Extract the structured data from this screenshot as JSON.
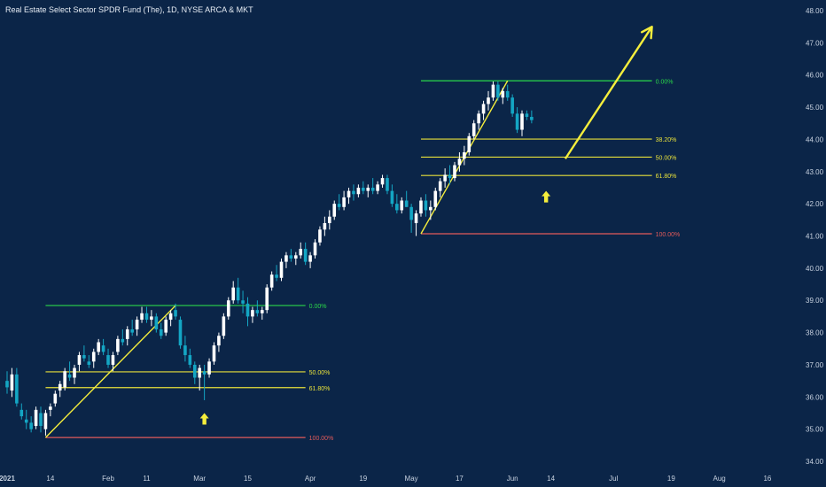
{
  "chart_data": {
    "type": "candlestick",
    "title": "Real Estate Select Sector SPDR Fund (The), 1D, NYSE ARCA & MKT",
    "ylim": [
      33.6,
      48.3
    ],
    "y_ticks": [
      "34.00",
      "35.00",
      "36.00",
      "37.00",
      "38.00",
      "39.00",
      "40.00",
      "41.00",
      "42.00",
      "43.00",
      "44.00",
      "45.00",
      "46.00",
      "47.00",
      "48.00"
    ],
    "x_ticks": [
      {
        "label": "2021",
        "bar": 0
      },
      {
        "label": "14",
        "bar": 9
      },
      {
        "label": "Feb",
        "bar": 21
      },
      {
        "label": "11",
        "bar": 29
      },
      {
        "label": "Mar",
        "bar": 40
      },
      {
        "label": "15",
        "bar": 50
      },
      {
        "label": "Apr",
        "bar": 63
      },
      {
        "label": "19",
        "bar": 74
      },
      {
        "label": "May",
        "bar": 84
      },
      {
        "label": "17",
        "bar": 94
      },
      {
        "label": "Jun",
        "bar": 105
      },
      {
        "label": "14",
        "bar": 113
      },
      {
        "label": "Jul",
        "bar": 126
      },
      {
        "label": "19",
        "bar": 138
      },
      {
        "label": "Aug",
        "bar": 148
      },
      {
        "label": "16",
        "bar": 158
      }
    ],
    "ohlc": [
      [
        36.5,
        36.8,
        36.1,
        36.3
      ],
      [
        36.2,
        36.9,
        36.0,
        36.7
      ],
      [
        36.7,
        36.9,
        35.7,
        35.8
      ],
      [
        35.6,
        35.8,
        35.3,
        35.4
      ],
      [
        35.3,
        35.6,
        35.0,
        35.2
      ],
      [
        35.2,
        35.4,
        34.9,
        35.0
      ],
      [
        35.1,
        35.7,
        35.0,
        35.6
      ],
      [
        35.5,
        35.7,
        34.9,
        35.1
      ],
      [
        35.0,
        35.6,
        34.8,
        35.5
      ],
      [
        35.6,
        35.8,
        35.4,
        35.7
      ],
      [
        35.8,
        36.2,
        35.7,
        36.1
      ],
      [
        36.2,
        36.5,
        36.0,
        36.4
      ],
      [
        36.3,
        36.9,
        36.2,
        36.8
      ],
      [
        36.7,
        37.1,
        36.5,
        36.6
      ],
      [
        36.6,
        37.0,
        36.4,
        36.9
      ],
      [
        37.0,
        37.4,
        36.8,
        37.3
      ],
      [
        37.3,
        37.6,
        37.1,
        37.2
      ],
      [
        37.1,
        37.3,
        36.9,
        37.0
      ],
      [
        37.1,
        37.5,
        36.9,
        37.4
      ],
      [
        37.4,
        37.8,
        37.3,
        37.7
      ],
      [
        37.6,
        37.8,
        37.3,
        37.4
      ],
      [
        37.3,
        37.5,
        36.9,
        37.0
      ],
      [
        37.0,
        37.4,
        36.8,
        37.3
      ],
      [
        37.4,
        37.9,
        37.3,
        37.8
      ],
      [
        37.8,
        38.1,
        37.6,
        37.7
      ],
      [
        37.8,
        38.2,
        37.6,
        38.1
      ],
      [
        38.1,
        38.4,
        37.9,
        38.0
      ],
      [
        38.1,
        38.5,
        37.9,
        38.4
      ],
      [
        38.4,
        38.8,
        38.3,
        38.6
      ],
      [
        38.6,
        38.8,
        38.3,
        38.4
      ],
      [
        38.4,
        38.7,
        38.2,
        38.5
      ],
      [
        38.5,
        38.6,
        38.0,
        38.1
      ],
      [
        38.1,
        38.3,
        37.8,
        37.9
      ],
      [
        38.0,
        38.5,
        37.9,
        38.4
      ],
      [
        38.4,
        38.7,
        38.2,
        38.6
      ],
      [
        38.7,
        38.9,
        38.4,
        38.5
      ],
      [
        38.4,
        38.5,
        37.5,
        37.6
      ],
      [
        37.6,
        37.9,
        37.1,
        37.3
      ],
      [
        37.3,
        37.5,
        36.9,
        37.0
      ],
      [
        37.0,
        37.1,
        36.4,
        36.6
      ],
      [
        36.6,
        37.0,
        36.2,
        36.9
      ],
      [
        36.8,
        37.0,
        35.9,
        36.7
      ],
      [
        36.7,
        37.2,
        36.6,
        37.1
      ],
      [
        37.1,
        37.7,
        37.0,
        37.6
      ],
      [
        37.6,
        38.0,
        37.4,
        37.9
      ],
      [
        37.9,
        38.6,
        37.8,
        38.5
      ],
      [
        38.5,
        39.1,
        38.4,
        39.0
      ],
      [
        39.0,
        39.6,
        38.9,
        39.4
      ],
      [
        39.4,
        39.7,
        38.9,
        39.0
      ],
      [
        39.0,
        39.3,
        38.6,
        38.9
      ],
      [
        38.9,
        39.1,
        38.2,
        38.5
      ],
      [
        38.5,
        38.8,
        38.3,
        38.7
      ],
      [
        38.7,
        39.0,
        38.5,
        38.6
      ],
      [
        38.6,
        38.8,
        38.4,
        38.7
      ],
      [
        38.7,
        39.5,
        38.6,
        39.4
      ],
      [
        39.4,
        39.9,
        39.3,
        39.8
      ],
      [
        39.8,
        40.1,
        39.6,
        39.7
      ],
      [
        39.7,
        40.3,
        39.6,
        40.2
      ],
      [
        40.2,
        40.5,
        40.0,
        40.4
      ],
      [
        40.4,
        40.6,
        40.2,
        40.3
      ],
      [
        40.3,
        40.5,
        40.1,
        40.4
      ],
      [
        40.4,
        40.8,
        40.3,
        40.6
      ],
      [
        40.6,
        40.8,
        40.1,
        40.2
      ],
      [
        40.2,
        40.5,
        40.0,
        40.4
      ],
      [
        40.4,
        40.9,
        40.3,
        40.8
      ],
      [
        40.8,
        41.3,
        40.7,
        41.2
      ],
      [
        41.2,
        41.6,
        41.0,
        41.4
      ],
      [
        41.4,
        41.8,
        41.2,
        41.6
      ],
      [
        41.6,
        42.1,
        41.5,
        42.0
      ],
      [
        42.0,
        42.3,
        41.8,
        41.9
      ],
      [
        41.9,
        42.4,
        41.8,
        42.2
      ],
      [
        42.2,
        42.5,
        42.0,
        42.4
      ],
      [
        42.4,
        42.6,
        42.1,
        42.3
      ],
      [
        42.3,
        42.6,
        42.2,
        42.5
      ],
      [
        42.5,
        42.7,
        42.3,
        42.4
      ],
      [
        42.4,
        42.6,
        42.2,
        42.5
      ],
      [
        42.5,
        42.8,
        42.3,
        42.4
      ],
      [
        42.4,
        42.7,
        42.3,
        42.6
      ],
      [
        42.6,
        42.9,
        42.5,
        42.8
      ],
      [
        42.8,
        42.9,
        42.3,
        42.4
      ],
      [
        42.4,
        42.6,
        41.9,
        42.0
      ],
      [
        42.0,
        42.3,
        41.7,
        41.8
      ],
      [
        41.8,
        42.2,
        41.7,
        42.1
      ],
      [
        42.1,
        42.4,
        41.9,
        41.9
      ],
      [
        41.9,
        42.0,
        41.1,
        41.5
      ],
      [
        41.4,
        41.8,
        41.0,
        41.7
      ],
      [
        41.7,
        42.2,
        41.6,
        42.1
      ],
      [
        42.1,
        42.3,
        41.6,
        41.8
      ],
      [
        41.8,
        42.1,
        41.5,
        41.9
      ],
      [
        41.9,
        42.5,
        41.8,
        42.4
      ],
      [
        42.4,
        42.8,
        42.2,
        42.7
      ],
      [
        42.7,
        43.1,
        42.5,
        42.9
      ],
      [
        42.9,
        43.2,
        42.6,
        42.8
      ],
      [
        42.8,
        43.3,
        42.7,
        43.2
      ],
      [
        43.2,
        43.6,
        43.0,
        43.4
      ],
      [
        43.4,
        43.8,
        43.2,
        43.6
      ],
      [
        43.6,
        44.2,
        43.5,
        44.1
      ],
      [
        44.1,
        44.6,
        44.0,
        44.5
      ],
      [
        44.5,
        44.9,
        44.3,
        44.8
      ],
      [
        44.8,
        45.2,
        44.6,
        45.1
      ],
      [
        45.1,
        45.5,
        44.9,
        45.3
      ],
      [
        45.3,
        45.8,
        45.2,
        45.7
      ],
      [
        45.7,
        45.8,
        45.2,
        45.3
      ],
      [
        45.3,
        45.6,
        45.1,
        45.5
      ],
      [
        45.5,
        45.7,
        45.2,
        45.3
      ],
      [
        45.3,
        45.4,
        44.7,
        44.8
      ],
      [
        44.8,
        45.0,
        44.2,
        44.3
      ],
      [
        44.3,
        44.9,
        44.1,
        44.8
      ],
      [
        44.8,
        44.9,
        44.6,
        44.7
      ],
      [
        44.7,
        44.9,
        44.5,
        44.6
      ]
    ],
    "fib_left": {
      "from_bar": 8,
      "to_bar": 62,
      "levels": [
        {
          "label": "0.00%",
          "price": 38.84,
          "color": "#2bd84a"
        },
        {
          "label": "50.00%",
          "price": 36.78,
          "color": "#e8e13a"
        },
        {
          "label": "61.80%",
          "price": 36.29,
          "color": "#e8e13a"
        },
        {
          "label": "100.00%",
          "price": 34.74,
          "color": "#e25a5a"
        }
      ]
    },
    "fib_right": {
      "from_bar": 86,
      "to_bar": 134,
      "levels": [
        {
          "label": "0.00%",
          "price": 45.82,
          "color": "#2bd84a"
        },
        {
          "label": "38.20%",
          "price": 44.01,
          "color": "#e8e13a"
        },
        {
          "label": "50.00%",
          "price": 43.45,
          "color": "#e8e13a"
        },
        {
          "label": "61.80%",
          "price": 42.88,
          "color": "#e8e13a"
        },
        {
          "label": "100.00%",
          "price": 41.07,
          "color": "#e25a5a"
        }
      ]
    },
    "trend_lines": [
      {
        "from": [
          8,
          34.74
        ],
        "to": [
          35,
          38.84
        ]
      },
      {
        "from": [
          86,
          41.07
        ],
        "to": [
          104,
          45.82
        ]
      }
    ],
    "projection_arrow": {
      "from": [
        116,
        43.4
      ],
      "to": [
        134,
        47.5
      ]
    },
    "markers": [
      {
        "type": "arrow-up",
        "bar": 41,
        "price": 35.5
      },
      {
        "type": "arrow-up",
        "bar": 112,
        "price": 42.4
      }
    ],
    "colors": {
      "background": "#0b2548",
      "up": "#ffffff",
      "down": "#14a6c4",
      "arrow": "#f5ee3c",
      "axis_text": "#c8d2e0"
    }
  }
}
